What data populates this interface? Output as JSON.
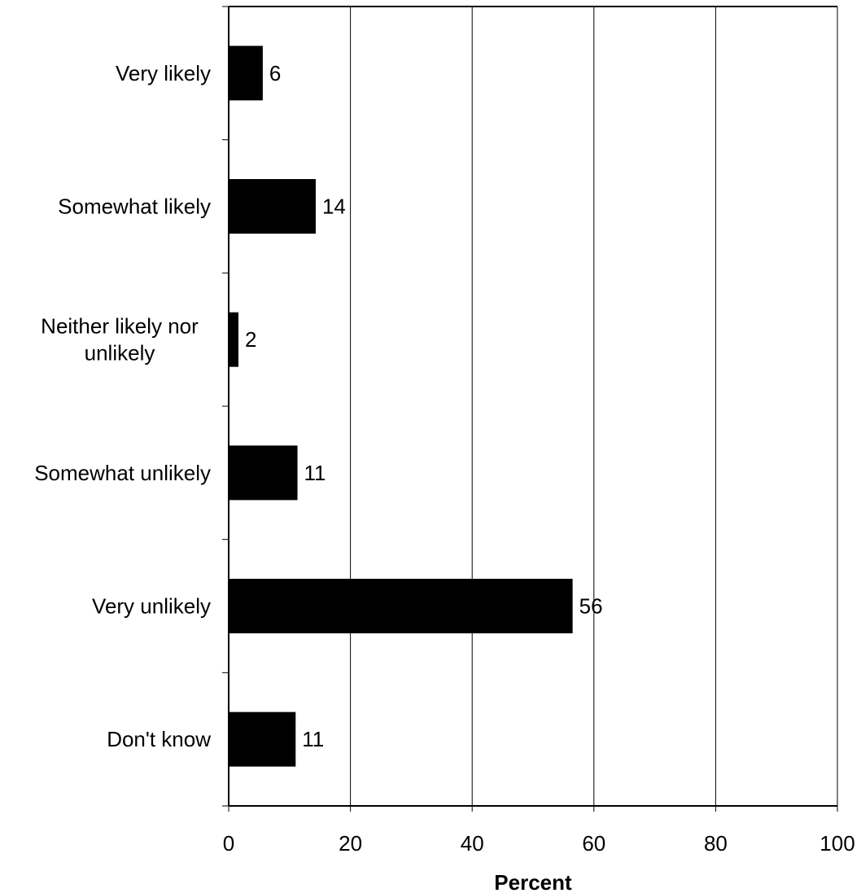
{
  "chart_data": {
    "type": "bar",
    "orientation": "horizontal",
    "categories": [
      [
        "Very likely"
      ],
      [
        "Somewhat likely"
      ],
      [
        "Neither likely nor",
        "unlikely"
      ],
      [
        "Somewhat unlikely"
      ],
      [
        "Very unlikely"
      ],
      [
        "Don't know"
      ]
    ],
    "values": [
      5.6,
      14.3,
      1.6,
      11.3,
      56.5,
      11.0
    ],
    "data_labels": [
      "6",
      "14",
      "2",
      "11",
      "56",
      "11"
    ],
    "xlabel": "Percent",
    "ylabel": "",
    "xlim": [
      0,
      100
    ],
    "xticks": [
      0,
      20,
      40,
      60,
      80,
      100
    ],
    "grid": "vertical",
    "legend": "none",
    "colors": {
      "bar": "#000000",
      "grid": "#000000",
      "background": "#ffffff"
    }
  }
}
